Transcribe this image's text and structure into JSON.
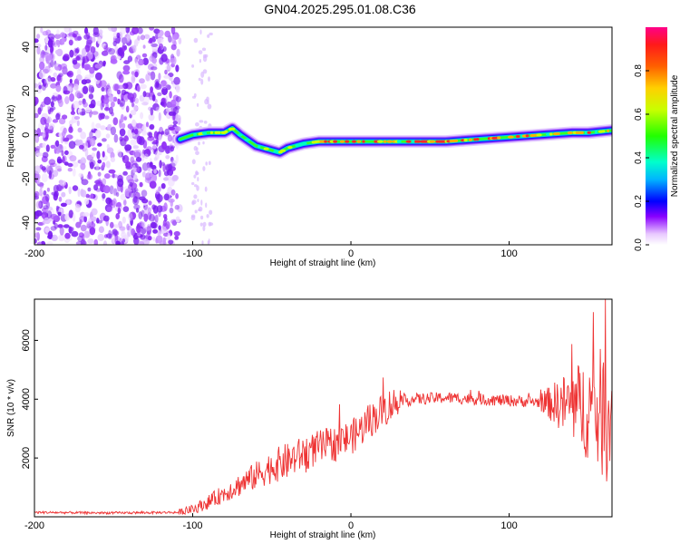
{
  "title": "GN04.2025.295.01.08.C36",
  "chart_data": [
    {
      "type": "heatmap",
      "xlabel": "Height of straight line (km)",
      "ylabel": "Frequency (Hz)",
      "xlim": [
        -200,
        165
      ],
      "ylim": [
        -50,
        49
      ],
      "xticks": [
        -200,
        -100,
        0,
        100
      ],
      "yticks": [
        -40,
        -20,
        0,
        20,
        40
      ],
      "colorbar": {
        "label": "Normalized spectral amplitude",
        "range": [
          0,
          1
        ],
        "ticks": [
          "0.0",
          "0.2",
          "0.4",
          "0.6",
          "0.8"
        ],
        "tick_values": [
          0.0,
          0.2,
          0.4,
          0.6,
          0.8
        ]
      },
      "noise_region": {
        "x": [
          -200,
          -108
        ],
        "freq": [
          -50,
          49
        ],
        "amplitude": 0.15
      },
      "ridge": {
        "x": [
          -108,
          -100,
          -90,
          -80,
          -75,
          -70,
          -60,
          -50,
          -45,
          -40,
          -30,
          -20,
          -10,
          0,
          10,
          20,
          40,
          60,
          80,
          100,
          120,
          140,
          150,
          165
        ],
        "freq": [
          -2,
          0,
          1,
          1,
          3,
          0,
          -5,
          -7,
          -8,
          -6,
          -4,
          -3,
          -3,
          -3,
          -3,
          -3,
          -3,
          -3,
          -2,
          -1,
          0,
          1,
          1,
          2
        ]
      }
    },
    {
      "type": "line",
      "xlabel": "Height of straight line (km)",
      "ylabel": "SNR (10 * v/v)",
      "xlim": [
        -200,
        165
      ],
      "ylim": [
        0,
        7400
      ],
      "xticks": [
        -200,
        -100,
        0,
        100
      ],
      "yticks": [
        2000,
        4000,
        6000
      ],
      "series": [
        {
          "name": "SNR",
          "color": "#ee3333",
          "x": [
            -200,
            -150,
            -110,
            -100,
            -90,
            -80,
            -70,
            -60,
            -50,
            -40,
            -30,
            -20,
            -10,
            0,
            5,
            10,
            15,
            20,
            25,
            30,
            40,
            60,
            80,
            100,
            120,
            130,
            140,
            150,
            155,
            160,
            165
          ],
          "values": [
            150,
            130,
            150,
            250,
            500,
            800,
            1100,
            1400,
            1700,
            1900,
            2150,
            2350,
            2500,
            2700,
            2900,
            3200,
            3400,
            3600,
            3800,
            3900,
            4000,
            4050,
            4000,
            3950,
            3900,
            3850,
            3800,
            3700,
            3600,
            3500,
            3400
          ]
        }
      ]
    }
  ]
}
